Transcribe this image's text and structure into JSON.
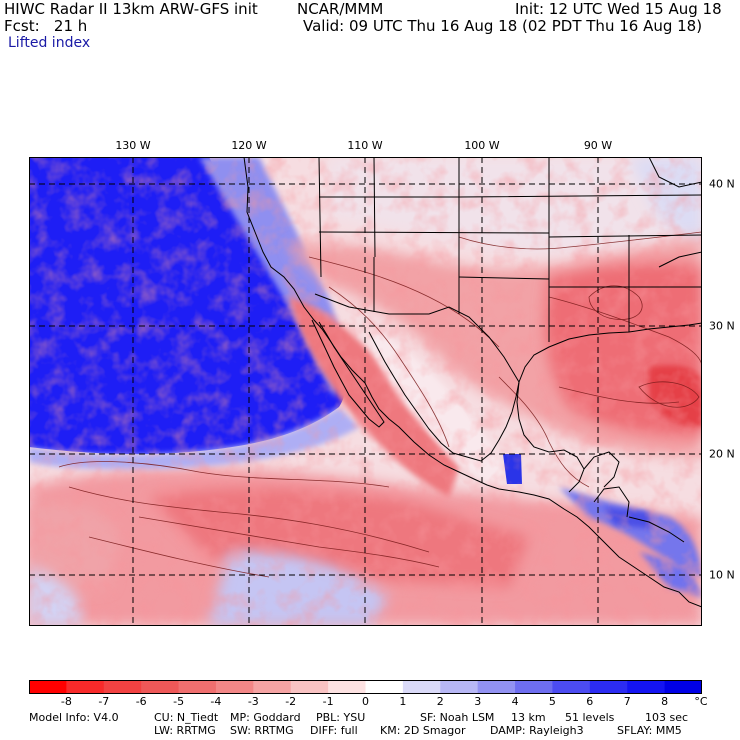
{
  "header": {
    "model_title": "HIWC Radar II 13km ARW-GFS init",
    "org": "NCAR/MMM",
    "init": "Init: 12 UTC Wed 15 Aug 18",
    "fcst": "Fcst:   21 h",
    "valid": "Valid: 09 UTC Thu 16 Aug 18 (02 PDT Thu 16 Aug 18)",
    "field_name": "Lifted index"
  },
  "map": {
    "lon_labels": [
      "130 W",
      "120 W",
      "110 W",
      "100 W",
      "90 W"
    ],
    "lat_labels": [
      "40 N",
      "30 N",
      "20 N",
      "10 N"
    ],
    "colors": {
      "ocean_stable": "#1e1ef5",
      "neutral": "#f4e4e8",
      "unstable": "#ee5a60",
      "contour": "#7a1a1a",
      "border": "#000000"
    }
  },
  "colorbar": {
    "labels": [
      "-8",
      "-7",
      "-6",
      "-5",
      "-4",
      "-3",
      "-2",
      "-1",
      "0",
      "1",
      "2",
      "3",
      "4",
      "5",
      "6",
      "7",
      "8"
    ],
    "unit": "°C",
    "colors": [
      "#ff0000",
      "#f82a2a",
      "#f24242",
      "#ee5858",
      "#f06f6f",
      "#f38787",
      "#f6a4a4",
      "#f9c3c3",
      "#fde2e2",
      "#ffffff",
      "#dadaf8",
      "#b7b7f5",
      "#9292f2",
      "#6e6ef0",
      "#4c4cf1",
      "#2c2cf2",
      "#1414f2",
      "#0000e6"
    ]
  },
  "footer": {
    "line1": [
      "Model Info: V4.0",
      "CU: N_Tiedt",
      "MP: Goddard",
      "PBL: YSU",
      "SF: Noah LSM",
      "13 km",
      "51 levels",
      "103 sec"
    ],
    "line2": [
      "LW: RRTMG",
      "SW: RRTMG",
      "DIFF: full",
      "KM: 2D Smagor",
      "DAMP: Rayleigh3",
      "SFLAY: MM5"
    ]
  }
}
